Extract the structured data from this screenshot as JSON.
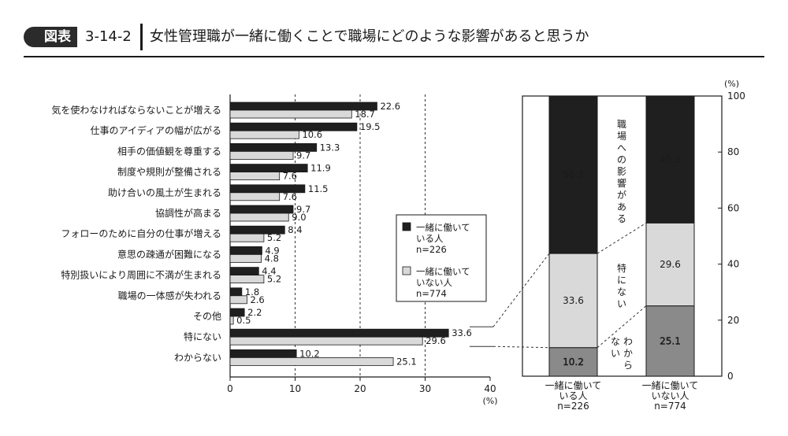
{
  "header": {
    "tag": "図表",
    "figure_number": "3-14-2",
    "title": "女性管理職が一緒に働くことで職場にどのような影響があると思うか"
  },
  "colors": {
    "worked_with": "#1f1f1f",
    "not_worked_with": "#d9d9d9",
    "dont_know": "#8a8a8a"
  },
  "chart_data": [
    {
      "type": "bar",
      "orientation": "horizontal",
      "categories": [
        "気を使わなければならないことが増える",
        "仕事のアイディアの幅が広がる",
        "相手の価値観を尊重する",
        "制度や規則が整備される",
        "助け合いの風土が生まれる",
        "協調性が高まる",
        "フォローのために自分の仕事が増える",
        "意思の疎通が困難になる",
        "特別扱いにより周囲に不満が生まれる",
        "職場の一体感が失われる",
        "その他",
        "特にない",
        "わからない"
      ],
      "series": [
        {
          "name": "一緒に働いている人 n=226",
          "legend_lines": [
            "一緒に働いて",
            "いる人",
            "n=226"
          ],
          "color": "#1f1f1f",
          "values": [
            22.6,
            19.5,
            13.3,
            11.9,
            11.5,
            9.7,
            8.4,
            4.9,
            4.4,
            1.8,
            2.2,
            33.6,
            10.2
          ]
        },
        {
          "name": "一緒に働いていない人 n=774",
          "legend_lines": [
            "一緒に働いて",
            "いない人",
            "n=774"
          ],
          "color": "#d9d9d9",
          "values": [
            18.7,
            10.6,
            9.7,
            7.6,
            7.6,
            9.0,
            5.2,
            4.8,
            5.2,
            2.6,
            0.5,
            29.6,
            25.1
          ]
        }
      ],
      "xlim": [
        0,
        40
      ],
      "xticks": [
        0,
        10,
        20,
        30,
        40
      ],
      "xlabel": "(%)",
      "gridlines": "dashed vertical at 10, 20, 30",
      "legend_position": "right"
    },
    {
      "type": "bar",
      "stacked": true,
      "categories": [
        "一緒に働いている人 n=226",
        "一緒に働いていない人 n=774"
      ],
      "category_lines": [
        [
          "一緒に働いて",
          "いる人",
          "n=226"
        ],
        [
          "一緒に働いて",
          "いない人",
          "n=774"
        ]
      ],
      "series": [
        {
          "name": "わからない",
          "label_chars": [
            "わ",
            "か",
            "ら",
            "な",
            "い"
          ],
          "color": "#8a8a8a",
          "values": [
            10.2,
            25.1
          ]
        },
        {
          "name": "特にない",
          "label_chars": [
            "特",
            "に",
            "な",
            "い"
          ],
          "color": "#d9d9d9",
          "values": [
            33.6,
            29.6
          ]
        },
        {
          "name": "職場への影響がある",
          "label_chars": [
            "職",
            "場",
            "へ",
            "の",
            "影",
            "響",
            "が",
            "あ",
            "る"
          ],
          "color": "#1f1f1f",
          "values": [
            56.2,
            45.3
          ]
        }
      ],
      "ylim": [
        0,
        100
      ],
      "yticks": [
        0,
        20,
        40,
        60,
        80,
        100
      ],
      "ylabel": "(%)"
    }
  ]
}
